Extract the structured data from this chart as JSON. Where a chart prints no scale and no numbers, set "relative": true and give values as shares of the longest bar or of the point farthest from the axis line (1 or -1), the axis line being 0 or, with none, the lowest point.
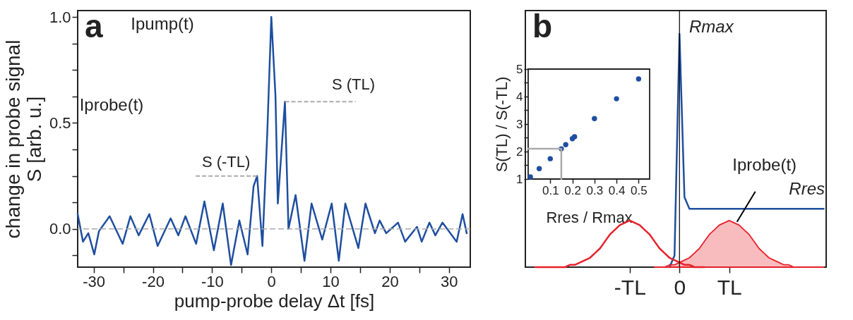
{
  "chart_data": [
    {
      "type": "line",
      "xlabel": "pump-probe delay Δt [fs]",
      "ylabel": "change in probe signal\nS [arb. u.]",
      "annotations": [
        "a",
        "Iprobe(t)",
        "Ipump(t)",
        {
          "text": "S (-TL)",
          "x": -2.4,
          "y": 0.25
        },
        {
          "text": "S (TL)",
          "x": 2.3,
          "y": 0.6
        }
      ],
      "x": [
        -32.7,
        -31.8,
        -30.9,
        -29.9,
        -29.1,
        -27.3,
        -25.1,
        -23.8,
        -22.4,
        -20.6,
        -19.2,
        -17.0,
        -15.7,
        -14.5,
        -12.7,
        -11.3,
        -9.7,
        -8.2,
        -6.8,
        -5.4,
        -4.0,
        -3.0,
        -2.4,
        -1.5,
        -0.7,
        0.0,
        0.7,
        1.1,
        2.3,
        2.9,
        4.1,
        5.6,
        6.8,
        8.6,
        10.2,
        11.4,
        12.5,
        14.7,
        15.9,
        17.5,
        18.3,
        19.4,
        21.4,
        22.6,
        24.6,
        25.4,
        26.7,
        27.7,
        28.9,
        31.3,
        32.3,
        33.0
      ],
      "values": [
        0.07,
        -0.06,
        -0.02,
        -0.12,
        -0.01,
        0.06,
        -0.07,
        0.06,
        -0.03,
        0.07,
        -0.08,
        0.05,
        -0.03,
        0.06,
        -0.07,
        0.13,
        -0.1,
        0.12,
        -0.17,
        0.04,
        -0.12,
        0.2,
        0.25,
        -0.08,
        0.44,
        1.0,
        0.63,
        0.12,
        0.6,
        0.0,
        0.16,
        -0.15,
        0.12,
        -0.05,
        0.12,
        -0.15,
        0.12,
        -0.09,
        0.12,
        -0.02,
        0.04,
        -0.02,
        0.03,
        -0.06,
        0.01,
        -0.06,
        0.03,
        -0.03,
        0.03,
        -0.06,
        0.07,
        -0.02
      ],
      "color": "#1f4e9f",
      "xlim": [
        -32.7,
        33.6
      ],
      "ylim": [
        -0.18,
        1.03
      ],
      "xticks": [
        -30,
        {
          "value": -25,
          "label": null
        },
        -20,
        {
          "value": -15,
          "label": null
        },
        -10,
        {
          "value": -5,
          "label": null
        },
        0,
        {
          "value": 5,
          "label": null
        },
        10,
        {
          "value": 15,
          "label": null
        },
        20,
        {
          "value": 25,
          "label": null
        },
        30
      ],
      "yticks": [
        {
          "value": -0.125,
          "label": null
        },
        {
          "value": 0,
          "label": "0.0"
        },
        {
          "value": 0.125,
          "label": null
        },
        {
          "value": 0.25,
          "label": null
        },
        {
          "value": 0.375,
          "label": null
        },
        {
          "value": 0.5,
          "label": "0.5"
        },
        {
          "value": 0.625,
          "label": null
        },
        {
          "value": 0.75,
          "label": null
        },
        {
          "value": 0.875,
          "label": null
        },
        {
          "value": 1,
          "label": "1.0"
        }
      ],
      "ref_lines": [
        {
          "axis": "y",
          "value": 0,
          "color": "#aaaaaa",
          "line_style": "dashed"
        }
      ]
    },
    {
      "type": "line",
      "relative": true,
      "annotations": [
        "b",
        "Rmax",
        "Rres"
      ],
      "categories": [
        null,
        null,
        null,
        null,
        null,
        null,
        null,
        null,
        null,
        null,
        null,
        null,
        null,
        null,
        null,
        null,
        null,
        null,
        null,
        null,
        "-TL",
        null,
        null,
        null,
        null,
        null,
        null,
        null,
        null,
        null,
        "0",
        null,
        null,
        null,
        null,
        null,
        null,
        null,
        null,
        null,
        "TL",
        null,
        null,
        null,
        null,
        null,
        null,
        null,
        null,
        null,
        null,
        null,
        null,
        null,
        null,
        null,
        null,
        null,
        null,
        null
      ],
      "ref_lines": [
        {
          "axis": "x",
          "value": "0",
          "color": "#000000"
        }
      ],
      "series": [
        {
          "type": "line",
          "color": "#1f4e9f",
          "values": [
            null,
            null,
            null,
            null,
            null,
            null,
            null,
            null,
            null,
            null,
            null,
            null,
            null,
            null,
            null,
            null,
            null,
            null,
            null,
            null,
            null,
            null,
            null,
            null,
            null,
            null,
            null,
            null,
            0,
            0.05,
            1,
            0.3,
            0.25,
            0.25,
            0.25,
            0.25,
            0.25,
            0.25,
            0.25,
            0.25,
            0.25,
            0.25,
            0.25,
            0.25,
            0.25,
            0.25,
            0.25,
            0.25,
            0.25,
            0.25,
            0.25,
            0.25,
            0.25,
            0.25,
            0.25,
            0.25,
            0.25,
            0.25,
            0.25,
            0.25
          ]
        },
        {
          "type": "line",
          "color": "#e8202a",
          "values": [
            null,
            0,
            0,
            0,
            0,
            0,
            0,
            0,
            0.01,
            0.01,
            0.02,
            0.03,
            0.04,
            0.06,
            0.08,
            0.11,
            0.14,
            0.16,
            0.18,
            0.19,
            0.2,
            0.19,
            0.18,
            0.16,
            0.14,
            0.11,
            0.08,
            0.06,
            0.04,
            0.03,
            0.02,
            0.01,
            0.01,
            0,
            0,
            0,
            null,
            null,
            null,
            null,
            null,
            null,
            null,
            null,
            null,
            null,
            null,
            null,
            null,
            null,
            null,
            null,
            null,
            null,
            null,
            null,
            null,
            null,
            null,
            null
          ]
        },
        {
          "type": "area",
          "name": "Iprobe(t)",
          "color": "#e8202a",
          "values": [
            null,
            null,
            null,
            null,
            null,
            null,
            null,
            null,
            null,
            null,
            null,
            null,
            null,
            null,
            null,
            null,
            null,
            null,
            null,
            null,
            null,
            null,
            null,
            null,
            null,
            0,
            0,
            0,
            0.01,
            0.01,
            0.02,
            0.03,
            0.04,
            0.06,
            0.08,
            0.11,
            0.14,
            0.16,
            0.18,
            0.19,
            0.2,
            0.19,
            0.18,
            0.16,
            0.14,
            0.11,
            0.08,
            0.06,
            0.04,
            0.03,
            0.02,
            0.01,
            0.01,
            0,
            0,
            0,
            0,
            0,
            0,
            0
          ]
        }
      ]
    },
    {
      "type": "scatter",
      "xlabel": "Rres / Rmax",
      "ylabel": "S(TL) / S(-TL)",
      "marker": "circle",
      "xlim": [
        0,
        0.55
      ],
      "ylim": [
        1,
        5
      ],
      "xticks": [
        0.1,
        0.2,
        0.3,
        0.4,
        0.5
      ],
      "yticks": [
        1,
        {
          "value": 1.5,
          "label": null
        },
        2,
        {
          "value": 2.5,
          "label": null
        },
        3,
        {
          "value": 3.5,
          "label": null
        },
        4,
        {
          "value": 4.5,
          "label": null
        },
        5
      ],
      "series": [
        {
          "type": "scatter",
          "color": "#1f4e9f",
          "x": [
            0.01,
            0.05,
            0.1,
            0.15,
            0.17,
            0.2,
            0.21,
            0.3,
            0.4,
            0.5
          ],
          "values": [
            1.08,
            1.38,
            1.74,
            2.1,
            2.25,
            2.47,
            2.54,
            3.2,
            3.92,
            4.64
          ]
        },
        {
          "type": "line",
          "marker": "none",
          "color": "#aaaaaa",
          "x": [
            0,
            0.15,
            0.15
          ],
          "values": [
            2.1,
            2.1,
            1
          ]
        }
      ]
    }
  ]
}
